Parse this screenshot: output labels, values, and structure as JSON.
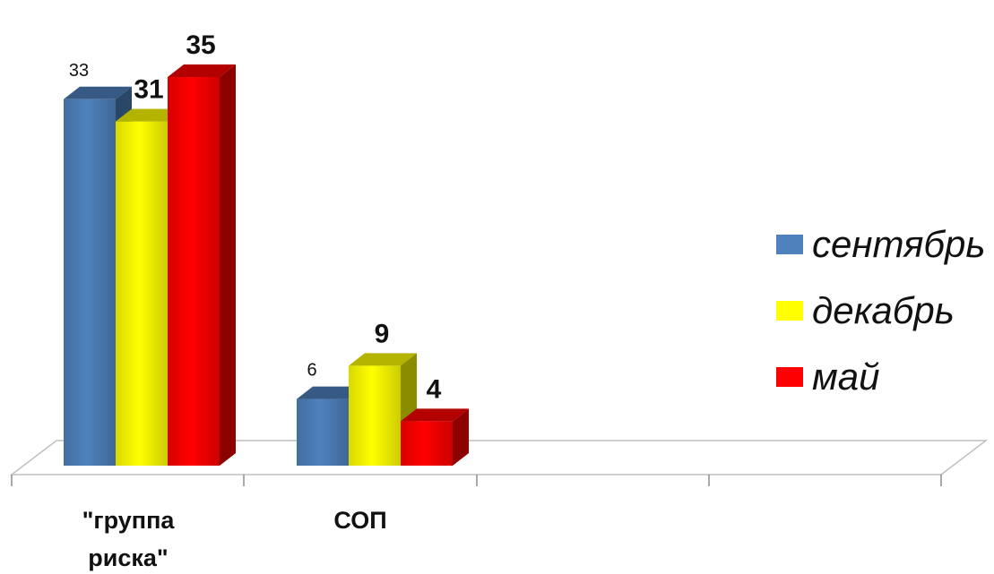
{
  "chart_data": {
    "type": "bar",
    "categories": [
      "\"группа риска\"",
      "СОП"
    ],
    "series": [
      {
        "name": "сентябрь",
        "values": [
          33,
          6
        ],
        "color": "#4F81BD",
        "label_bold": false
      },
      {
        "name": "декабрь",
        "values": [
          31,
          9
        ],
        "color": "#FFFF00",
        "label_bold": true
      },
      {
        "name": "май",
        "values": [
          35,
          4
        ],
        "color": "#FF0000",
        "label_bold": true
      }
    ],
    "title": "",
    "xlabel": "",
    "ylabel": "",
    "ylim": [
      0,
      35
    ],
    "grid": false,
    "legend_position": "right",
    "three_d": true
  }
}
